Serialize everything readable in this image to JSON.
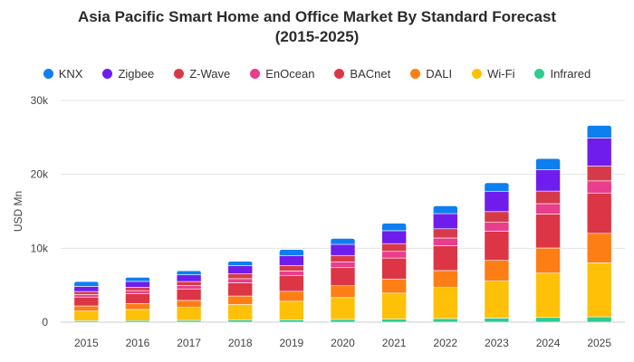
{
  "chart_data": {
    "type": "bar",
    "stacked": true,
    "title_line1": "Asia Pacific Smart Home and Office Market By Standard Forecast",
    "title_line2": "(2015-2025)",
    "ylabel": "USD Mn",
    "xlabel": "",
    "ylim": [
      0,
      30000
    ],
    "yticks": [
      0,
      10000,
      20000,
      30000
    ],
    "ytick_labels": [
      "0",
      "10k",
      "20k",
      "30k"
    ],
    "legend_position": "top",
    "categories": [
      "2015",
      "2016",
      "2017",
      "2018",
      "2019",
      "2020",
      "2021",
      "2022",
      "2023",
      "2024",
      "2025"
    ],
    "series": [
      {
        "name": "Infrared",
        "color": "#2ecc8f",
        "values": [
          200,
          220,
          250,
          290,
          330,
          380,
          430,
          490,
          560,
          640,
          720
        ]
      },
      {
        "name": "Wi-Fi",
        "color": "#ffc107",
        "values": [
          1300,
          1500,
          1750,
          2100,
          2500,
          2950,
          3500,
          4200,
          5000,
          6000,
          7300
        ]
      },
      {
        "name": "DALI",
        "color": "#fd7e14",
        "values": [
          700,
          800,
          950,
          1150,
          1350,
          1600,
          1900,
          2300,
          2800,
          3400,
          4000
        ]
      },
      {
        "name": "BACnet",
        "color": "#dc3545",
        "values": [
          1200,
          1350,
          1550,
          1800,
          2100,
          2450,
          2850,
          3350,
          3950,
          4600,
          5450
        ]
      },
      {
        "name": "EnOcean",
        "color": "#e83e8c",
        "values": [
          350,
          400,
          450,
          550,
          650,
          750,
          900,
          1050,
          1200,
          1400,
          1650
        ]
      },
      {
        "name": "Z-Wave",
        "color": "#d63a4a",
        "values": [
          400,
          450,
          550,
          650,
          750,
          900,
          1050,
          1250,
          1450,
          1700,
          2000
        ]
      },
      {
        "name": "Zigbee",
        "color": "#6f1ded",
        "values": [
          700,
          800,
          900,
          1100,
          1300,
          1500,
          1750,
          2050,
          2750,
          2900,
          3800
        ]
      },
      {
        "name": "KNX",
        "color": "#0d7ff0",
        "values": [
          650,
          550,
          550,
          600,
          850,
          800,
          1000,
          1050,
          1150,
          1500,
          1700
        ]
      }
    ],
    "legend_order": [
      "KNX",
      "Zigbee",
      "Z-Wave",
      "EnOcean",
      "BACnet",
      "DALI",
      "Wi-Fi",
      "Infrared"
    ]
  }
}
